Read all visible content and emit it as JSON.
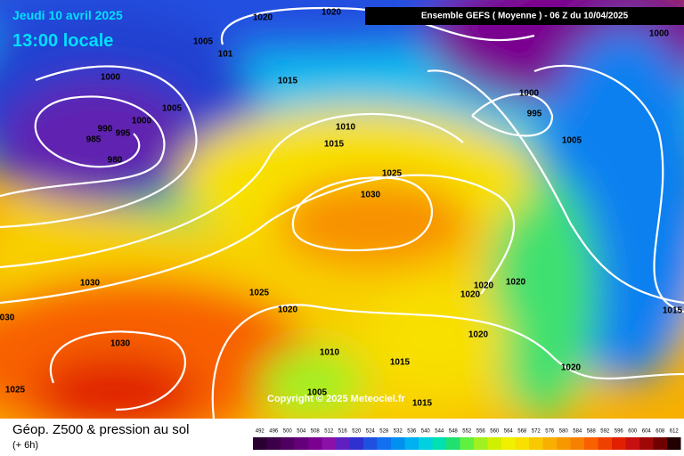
{
  "header": {
    "date": "Jeudi 10 avril 2025",
    "time": "13:00 locale",
    "run": "Ensemble GEFS  ( Moyenne )  -  06 Z du 10/04/2025"
  },
  "map": {
    "copyright": "Copyright © 2025 Meteociel.fr",
    "isobar_labels": [
      "1020",
      "1020",
      "1000",
      "1005",
      "101",
      "1000",
      "1015",
      "1000",
      "1005",
      "995",
      "990",
      "995",
      "1000",
      "1010",
      "985",
      "1015",
      "1005",
      "980",
      "1025",
      "1030",
      "1030",
      "1025",
      "1020",
      "1020",
      "1020",
      "1015",
      "030",
      "1020",
      "1030",
      "1010",
      "1020",
      "1015",
      "1020",
      "1025",
      "1005",
      "1015"
    ]
  },
  "footer": {
    "title": "Géop. Z500 & pression au sol",
    "subtitle": "(+ 6h)"
  },
  "scale": {
    "values": [
      492,
      496,
      500,
      504,
      508,
      512,
      516,
      520,
      524,
      528,
      532,
      536,
      540,
      544,
      548,
      552,
      556,
      560,
      564,
      568,
      572,
      576,
      580,
      584,
      588,
      592,
      596,
      600,
      604,
      608,
      612
    ],
    "colors": [
      "#2a0030",
      "#3c0048",
      "#500060",
      "#640078",
      "#7a0090",
      "#8a10a8",
      "#6020c0",
      "#3030d0",
      "#2050e0",
      "#1070f0",
      "#0090f0",
      "#00b0f0",
      "#00d0e0",
      "#00e0b0",
      "#20e070",
      "#60f040",
      "#a0f020",
      "#d0f000",
      "#f0f000",
      "#f8e000",
      "#f8c800",
      "#f8b000",
      "#f89800",
      "#f88000",
      "#f86000",
      "#f04000",
      "#e02000",
      "#c81010",
      "#a00808",
      "#700000",
      "#200000"
    ]
  }
}
